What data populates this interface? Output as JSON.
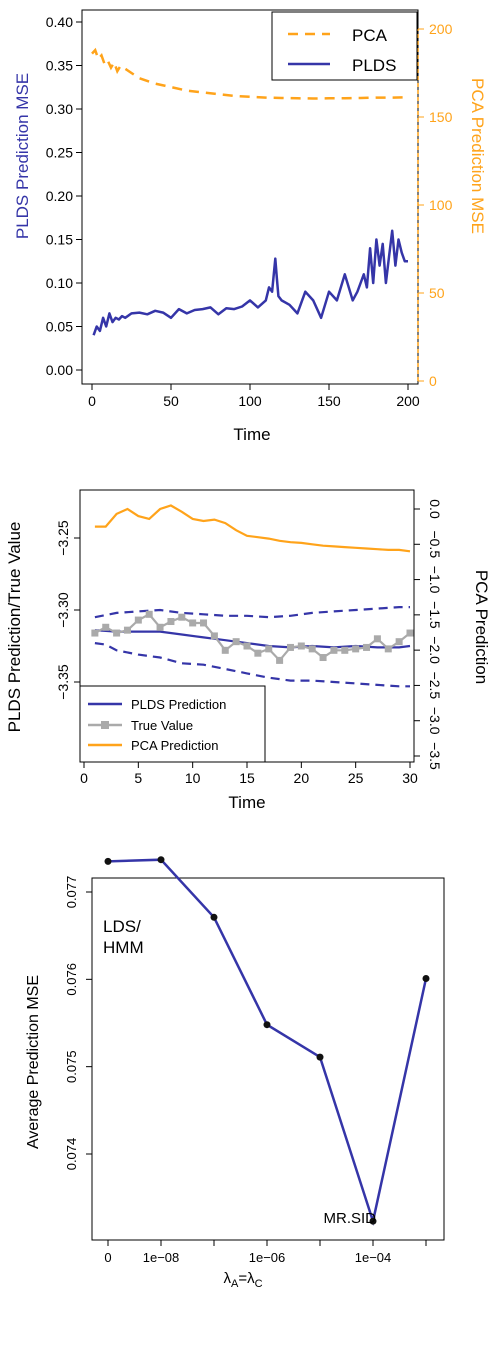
{
  "chart_data": [
    {
      "type": "line",
      "ylabel_left": "PLDS Prediction MSE",
      "ylabel_right": "PCA Prediction MSE",
      "xlabel": "Time",
      "xlim": [
        0,
        200
      ],
      "ylim_left": [
        0.0,
        0.4
      ],
      "ylim_right": [
        0,
        200
      ],
      "x_ticks": [
        "0",
        "50",
        "100",
        "150",
        "200"
      ],
      "y_left_ticks": [
        "0.00",
        "0.05",
        "0.10",
        "0.15",
        "0.20",
        "0.25",
        "0.30",
        "0.35",
        "0.40"
      ],
      "y_right_ticks": [
        "0",
        "50",
        "100",
        "150",
        "200"
      ],
      "legend_position": "top-right",
      "colors": {
        "PCA": "#FFA31A",
        "PLDS": "#3535A8"
      },
      "series": [
        {
          "name": "PCA",
          "axis": "right",
          "style": "dashed",
          "x": [
            0,
            2,
            4,
            6,
            8,
            10,
            12,
            14,
            16,
            18,
            20,
            30,
            40,
            50,
            60,
            70,
            80,
            90,
            100,
            110,
            120,
            130,
            140,
            150,
            160,
            170,
            180,
            190,
            200
          ],
          "values": [
            186,
            188,
            183,
            185,
            180,
            182,
            178,
            181,
            176,
            179,
            178,
            172,
            169,
            167,
            165,
            164,
            163,
            162,
            161.5,
            161,
            160.8,
            160.6,
            160.5,
            160.6,
            160.7,
            160.8,
            161,
            161,
            161.2
          ]
        },
        {
          "name": "PLDS",
          "axis": "left",
          "x": [
            1,
            3,
            5,
            7,
            9,
            11,
            13,
            15,
            17,
            19,
            21,
            25,
            30,
            35,
            40,
            45,
            50,
            55,
            60,
            65,
            70,
            75,
            80,
            85,
            90,
            95,
            100,
            105,
            110,
            112,
            114,
            116,
            117,
            118,
            120,
            125,
            130,
            135,
            140,
            145,
            150,
            155,
            160,
            165,
            168,
            170,
            172,
            174,
            176,
            178,
            180,
            182,
            184,
            186,
            188,
            190,
            192,
            194,
            196,
            198,
            200
          ],
          "values": [
            0.04,
            0.05,
            0.045,
            0.06,
            0.05,
            0.065,
            0.055,
            0.06,
            0.058,
            0.062,
            0.06,
            0.065,
            0.066,
            0.064,
            0.068,
            0.066,
            0.06,
            0.07,
            0.065,
            0.069,
            0.07,
            0.072,
            0.064,
            0.071,
            0.07,
            0.073,
            0.08,
            0.072,
            0.08,
            0.095,
            0.09,
            0.128,
            0.105,
            0.085,
            0.08,
            0.075,
            0.065,
            0.09,
            0.08,
            0.06,
            0.09,
            0.08,
            0.11,
            0.08,
            0.09,
            0.1,
            0.11,
            0.095,
            0.14,
            0.1,
            0.15,
            0.12,
            0.145,
            0.1,
            0.13,
            0.16,
            0.12,
            0.15,
            0.135,
            0.125,
            0.125
          ]
        }
      ]
    },
    {
      "type": "line",
      "ylabel_left": "PLDS Prediction/True Value",
      "ylabel_right": "PCA Prediction",
      "xlabel": "Time",
      "xlim": [
        0,
        30
      ],
      "ylim_left": [
        -3.385,
        -3.215
      ],
      "ylim_right": [
        -3.5,
        0.2
      ],
      "x_ticks": [
        "0",
        "5",
        "10",
        "15",
        "20",
        "25",
        "30"
      ],
      "y_left_ticks": [
        "-3.35",
        "-3.30",
        "-3.25"
      ],
      "y_right_ticks": [
        "-3.5",
        "-3.0",
        "-2.5",
        "-2.0",
        "-1.5",
        "-1.0",
        "-0.5",
        "0.0"
      ],
      "legend_position": "bottom-left",
      "colors": {
        "PLDS Prediction": "#3535A8",
        "True Value": "#AAAAAA",
        "PCA Prediction": "#FFA31A"
      },
      "legend": [
        "PLDS Prediction",
        "True Value",
        "PCA Prediction"
      ],
      "series": [
        {
          "name": "PLDS Prediction",
          "axis": "left",
          "x": [
            1,
            3,
            5,
            7,
            9,
            11,
            13,
            15,
            17,
            19,
            21,
            23,
            25,
            27,
            29,
            30
          ],
          "values": [
            -3.314,
            -3.315,
            -3.315,
            -3.315,
            -3.317,
            -3.319,
            -3.321,
            -3.323,
            -3.325,
            -3.326,
            -3.325,
            -3.326,
            -3.325,
            -3.326,
            -3.326,
            -3.325
          ]
        },
        {
          "name": "upper band",
          "axis": "left",
          "style": "dashed",
          "x": [
            1,
            3,
            5,
            7,
            9,
            11,
            13,
            15,
            17,
            19,
            21,
            23,
            25,
            27,
            29,
            30
          ],
          "values": [
            -3.305,
            -3.302,
            -3.301,
            -3.3,
            -3.302,
            -3.303,
            -3.304,
            -3.304,
            -3.305,
            -3.304,
            -3.302,
            -3.301,
            -3.3,
            -3.299,
            -3.298,
            -3.298
          ]
        },
        {
          "name": "lower band",
          "axis": "left",
          "style": "dashed",
          "x": [
            1,
            2,
            3,
            5,
            7,
            9,
            11,
            13,
            15,
            17,
            19,
            21,
            23,
            25,
            27,
            29,
            30
          ],
          "values": [
            -3.323,
            -3.324,
            -3.328,
            -3.331,
            -3.333,
            -3.337,
            -3.338,
            -3.341,
            -3.344,
            -3.347,
            -3.349,
            -3.349,
            -3.35,
            -3.351,
            -3.352,
            -3.353,
            -3.353
          ]
        },
        {
          "name": "True Value",
          "axis": "left",
          "x": [
            1,
            2,
            3,
            4,
            5,
            6,
            7,
            8,
            9,
            10,
            11,
            12,
            13,
            14,
            15,
            16,
            17,
            18,
            19,
            20,
            21,
            22,
            23,
            24,
            25,
            26,
            27,
            28,
            29,
            30
          ],
          "values": [
            -3.316,
            -3.312,
            -3.316,
            -3.314,
            -3.307,
            -3.303,
            -3.312,
            -3.308,
            -3.305,
            -3.309,
            -3.309,
            -3.318,
            -3.328,
            -3.322,
            -3.325,
            -3.33,
            -3.327,
            -3.335,
            -3.326,
            -3.325,
            -3.327,
            -3.333,
            -3.328,
            -3.328,
            -3.327,
            -3.326,
            -3.32,
            -3.327,
            -3.322,
            -3.316
          ]
        },
        {
          "name": "PCA Prediction",
          "axis": "right",
          "x": [
            1,
            2,
            3,
            4,
            5,
            6,
            7,
            8,
            9,
            10,
            11,
            12,
            13,
            14,
            15,
            16,
            17,
            18,
            19,
            20,
            21,
            22,
            23,
            24,
            25,
            26,
            27,
            28,
            29,
            30
          ],
          "values": [
            -0.25,
            -0.25,
            -0.07,
            0.0,
            -0.1,
            -0.14,
            0.0,
            0.05,
            -0.04,
            -0.14,
            -0.17,
            -0.15,
            -0.2,
            -0.3,
            -0.38,
            -0.4,
            -0.42,
            -0.45,
            -0.47,
            -0.48,
            -0.5,
            -0.52,
            -0.53,
            -0.54,
            -0.55,
            -0.56,
            -0.57,
            -0.58,
            -0.58,
            -0.6
          ]
        }
      ]
    },
    {
      "type": "line",
      "ylabel": "Average Prediction MSE",
      "xlabel": "λA=λC",
      "x_ticks": [
        "0",
        "1e−08",
        "1e−06",
        "1e−04"
      ],
      "y_ticks": [
        "0.074",
        "0.075",
        "0.076",
        "0.077"
      ],
      "ylim": [
        0.07305,
        0.07768
      ],
      "colors": {
        "line": "#3535A8"
      },
      "series": [
        {
          "x": [
            "0",
            "1e−08",
            "1e−07",
            "1e−06",
            "1e−05",
            "1e−04",
            "1e−03"
          ],
          "values": [
            0.07735,
            0.07737,
            0.07671,
            0.07548,
            0.07511,
            0.07323,
            0.07601
          ]
        }
      ],
      "annotations": [
        {
          "text": "LDS/",
          "near": "0"
        },
        {
          "text": "HMM",
          "near": "0"
        },
        {
          "text": "MR.SID",
          "near": "1e−04"
        }
      ]
    }
  ]
}
